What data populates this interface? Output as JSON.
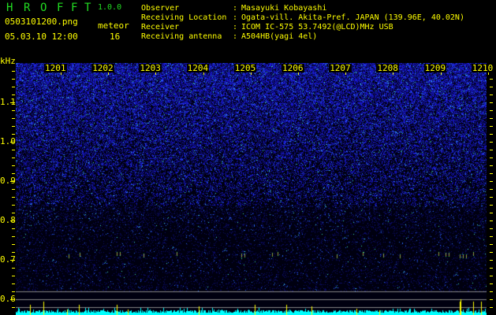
{
  "app": {
    "name_letters": [
      "H",
      "R",
      "O",
      "F",
      "F",
      "T"
    ],
    "version": "1.0.0"
  },
  "file": {
    "name": "0503101200.png",
    "datetime": "05.03.10 12:00"
  },
  "meteor": {
    "label": "meteor",
    "count": "16"
  },
  "info": [
    {
      "key": "Observer",
      "value": "Masayuki Kobayashi"
    },
    {
      "key": "Receiving Location",
      "value": "Ogata-vill. Akita-Pref. JAPAN (139.96E, 40.02N)"
    },
    {
      "key": "Receiver",
      "value": "ICOM IC-575 53.7492(@LCD)MHz USB"
    },
    {
      "key": "Receiving antenna",
      "value": "A504HB(yagi 4el)"
    }
  ],
  "axis": {
    "y_unit": "kHz",
    "y_labels": [
      "1.1",
      "1.0",
      "0.9",
      "0.8",
      "0.7",
      "0.6"
    ],
    "y_range": [
      0.6,
      1.2
    ],
    "x_labels": [
      "1201",
      "1202",
      "1203",
      "1204",
      "1205",
      "1206",
      "1207",
      "1208",
      "1209",
      "1210"
    ]
  },
  "colors": {
    "text": "#ffff00",
    "title": "#22dd22",
    "noise": "#1a1aff",
    "histogram": "#00ffff",
    "spike": "#ffff00"
  }
}
